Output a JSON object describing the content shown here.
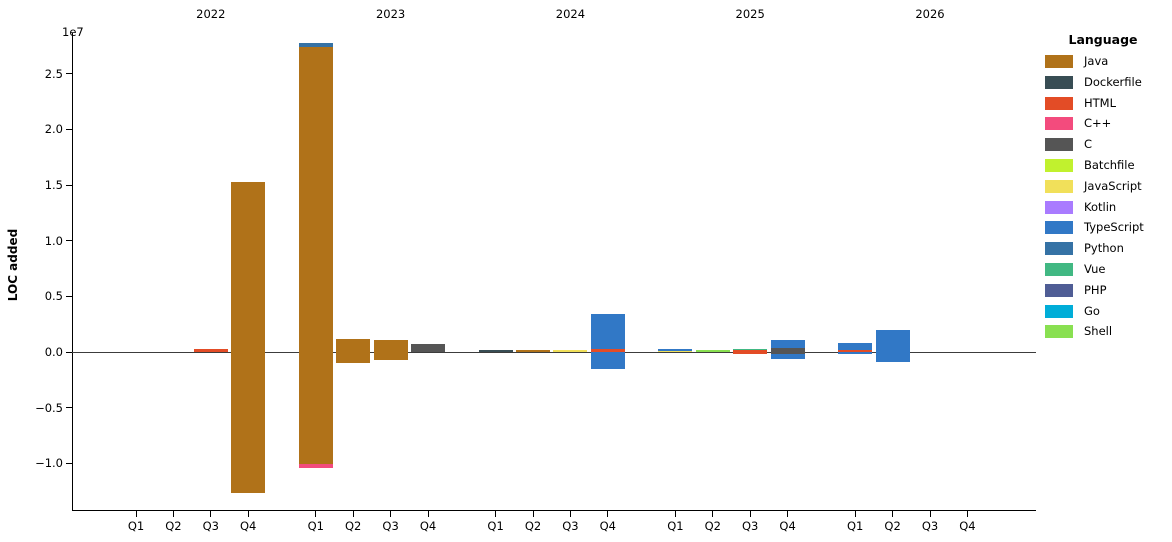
{
  "figure": {
    "ylabel": "LOC added",
    "y_offset_label": "1e7",
    "legend_title": "Language",
    "background_color": "#ffffff",
    "zero_line_color": "#3c3c3c"
  },
  "chart_data": {
    "type": "bar",
    "stacked": true,
    "orientation": "vertical",
    "diverging": true,
    "ylabel": "LOC added",
    "y_offset_label": "1e7",
    "values_unit": "LOC",
    "grid": false,
    "legend_position": "right",
    "legend_title": "Language",
    "ylim": [
      -14300000,
      28700000
    ],
    "y_ticks": [
      25000000,
      20000000,
      15000000,
      10000000,
      5000000,
      0,
      -5000000,
      -10000000
    ],
    "y_tick_labels": [
      "2.5",
      "2.0",
      "1.5",
      "1.0",
      "0.5",
      "0.0",
      "−0.5",
      "−1.0"
    ],
    "languages": [
      {
        "name": "Java",
        "color": "#b07219"
      },
      {
        "name": "Dockerfile",
        "color": "#384d54"
      },
      {
        "name": "HTML",
        "color": "#e34c26"
      },
      {
        "name": "C++",
        "color": "#f34b7d"
      },
      {
        "name": "C",
        "color": "#555555"
      },
      {
        "name": "Batchfile",
        "color": "#C1F12E"
      },
      {
        "name": "JavaScript",
        "color": "#f1e05a"
      },
      {
        "name": "Kotlin",
        "color": "#A97BFF"
      },
      {
        "name": "TypeScript",
        "color": "#3178c6"
      },
      {
        "name": "Python",
        "color": "#3572A5"
      },
      {
        "name": "Vue",
        "color": "#41b883"
      },
      {
        "name": "PHP",
        "color": "#4F5D95"
      },
      {
        "name": "Go",
        "color": "#00ADD8"
      },
      {
        "name": "Shell",
        "color": "#89e051"
      }
    ],
    "years": [
      {
        "label": "2022",
        "quarters": [
          {
            "label": "Q1",
            "segments": []
          },
          {
            "label": "Q2",
            "segments": []
          },
          {
            "label": "Q3",
            "segments": [
              {
                "language": "HTML",
                "loc": 300000
              }
            ]
          },
          {
            "label": "Q4",
            "segments": [
              {
                "language": "Java",
                "loc": 15300000
              },
              {
                "language": "Java",
                "loc": -12700000
              }
            ]
          }
        ]
      },
      {
        "label": "2023",
        "quarters": [
          {
            "label": "Q1",
            "segments": [
              {
                "language": "Java",
                "loc": 27400000
              },
              {
                "language": "Python",
                "loc": 400000
              },
              {
                "language": "Java",
                "loc": -10100000
              },
              {
                "language": "C++",
                "loc": -300000
              }
            ]
          },
          {
            "label": "Q2",
            "segments": [
              {
                "language": "Java",
                "loc": 1200000
              },
              {
                "language": "Java",
                "loc": -1000000
              }
            ]
          },
          {
            "label": "Q3",
            "segments": [
              {
                "language": "Java",
                "loc": 1100000
              },
              {
                "language": "Java",
                "loc": -700000
              }
            ]
          },
          {
            "label": "Q4",
            "segments": [
              {
                "language": "C",
                "loc": 700000
              }
            ]
          }
        ]
      },
      {
        "label": "2024",
        "quarters": [
          {
            "label": "Q1",
            "segments": [
              {
                "language": "Dockerfile",
                "loc": 200000
              }
            ]
          },
          {
            "label": "Q2",
            "segments": [
              {
                "language": "Java",
                "loc": 200000
              }
            ]
          },
          {
            "label": "Q3",
            "segments": [
              {
                "language": "JavaScript",
                "loc": 150000
              }
            ]
          },
          {
            "label": "Q4",
            "segments": [
              {
                "language": "HTML",
                "loc": 250000
              },
              {
                "language": "TypeScript",
                "loc": 3150000
              },
              {
                "language": "TypeScript",
                "loc": -1500000
              }
            ]
          }
        ]
      },
      {
        "label": "2025",
        "quarters": [
          {
            "label": "Q1",
            "segments": [
              {
                "language": "JavaScript",
                "loc": 80000
              },
              {
                "language": "TypeScript",
                "loc": 180000
              }
            ]
          },
          {
            "label": "Q2",
            "segments": [
              {
                "language": "Shell",
                "loc": 200000
              }
            ]
          },
          {
            "label": "Q3",
            "segments": [
              {
                "language": "HTML",
                "loc": 150000
              },
              {
                "language": "Vue",
                "loc": 100000
              },
              {
                "language": "HTML",
                "loc": -200000
              }
            ]
          },
          {
            "label": "Q4",
            "segments": [
              {
                "language": "C",
                "loc": 400000
              },
              {
                "language": "TypeScript",
                "loc": 700000
              },
              {
                "language": "C",
                "loc": -200000
              },
              {
                "language": "TypeScript",
                "loc": -400000
              }
            ]
          }
        ]
      },
      {
        "label": "2026",
        "quarters": [
          {
            "label": "Q1",
            "segments": [
              {
                "language": "HTML",
                "loc": 200000
              },
              {
                "language": "TypeScript",
                "loc": 600000
              },
              {
                "language": "TypeScript",
                "loc": -200000
              }
            ]
          },
          {
            "label": "Q2",
            "segments": [
              {
                "language": "TypeScript",
                "loc": 2000000
              },
              {
                "language": "TypeScript",
                "loc": -900000
              }
            ]
          },
          {
            "label": "Q3",
            "segments": []
          },
          {
            "label": "Q4",
            "segments": []
          }
        ]
      }
    ]
  }
}
